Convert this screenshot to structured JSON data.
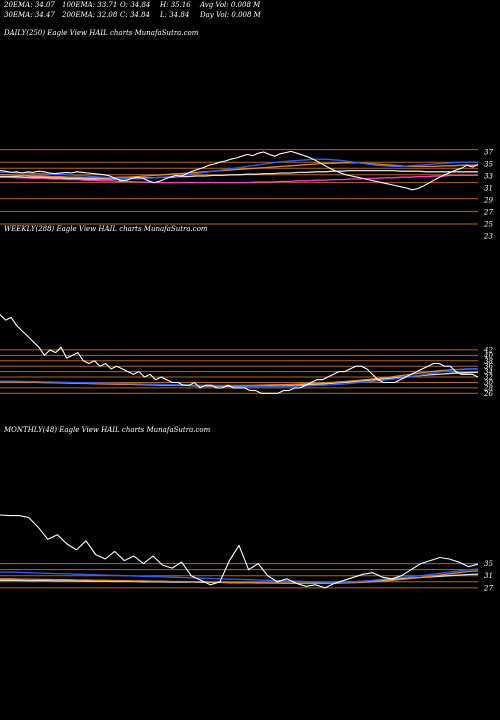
{
  "header": {
    "row1": [
      "20EMA: 34.07",
      "100EMA: 33.71",
      "O: 34.84",
      "H: 35.16",
      "Avg Vol: 0.008 M"
    ],
    "row2": [
      "30EMA: 34.47",
      "200EMA: 32.08",
      "C: 34.84",
      "L: 34.84",
      "Day Vol: 0.008 M"
    ]
  },
  "colors": {
    "background": "#000000",
    "price": "#ffffff",
    "level_lines": "#b5651d",
    "ema_blue": "#2f5fff",
    "ema_magenta": "#ff3cc8",
    "ema_orange": "#e08a30",
    "ema_white": "#dddddd"
  },
  "chart_data": [
    {
      "type": "line",
      "title": "DAILY(250) Eagle  View  HAIL  charts MunafaSutra.com",
      "y_ticks": [
        "37",
        "35",
        "33",
        "31",
        "29",
        "27",
        "25",
        "23"
      ],
      "series": [
        {
          "values": [
            33.9,
            33.8,
            33.6,
            33.7,
            33.5,
            33.7,
            33.6,
            33.8,
            33.7,
            33.5,
            33.4,
            33.5,
            33.6,
            33.5,
            33.7,
            33.6,
            33.5,
            33.4,
            33.3,
            33.2,
            33.0,
            32.6,
            32.2,
            32.3,
            32.6,
            32.8,
            32.6,
            32.2,
            31.9,
            32.1,
            32.5,
            32.8,
            33.1,
            33.0,
            33.4,
            33.8,
            34.1,
            34.4,
            34.8,
            35.0,
            35.3,
            35.5,
            35.8,
            36.0,
            36.3,
            36.6,
            36.4,
            36.8,
            37.0,
            36.6,
            36.3,
            36.7,
            36.9,
            37.1,
            36.8,
            36.5,
            36.2,
            35.8,
            35.3,
            34.8,
            34.3,
            33.9,
            33.5,
            33.2,
            33.0,
            32.8,
            32.6,
            32.4,
            32.2,
            32.0,
            31.8,
            31.6,
            31.4,
            31.2,
            31.0,
            30.7,
            30.9,
            31.3,
            31.8,
            32.3,
            32.8,
            33.2,
            33.6,
            34.0,
            34.3,
            34.8,
            34.5,
            34.9
          ]
        },
        {
          "values": [
            33.6,
            33.6,
            33.5,
            33.5,
            33.4,
            33.4,
            33.3,
            33.3,
            33.2,
            33.1,
            33.0,
            32.9,
            32.8,
            32.7,
            32.6,
            32.6,
            32.5,
            32.6,
            32.7,
            32.8,
            32.9,
            33.0,
            33.2,
            33.4,
            33.6,
            33.8,
            34.0,
            34.2,
            34.4,
            34.6,
            34.8,
            35.0,
            35.2,
            35.4,
            35.5,
            35.6,
            35.7,
            35.8,
            35.8,
            35.7,
            35.6,
            35.4,
            35.2,
            35.0,
            34.8,
            34.7,
            34.6,
            34.6,
            34.7,
            34.8,
            34.9,
            35.0,
            35.1,
            35.2,
            35.3,
            35.3,
            35.3
          ]
        },
        {
          "values": [
            33.2,
            33.2,
            33.1,
            33.1,
            33.0,
            33.0,
            32.9,
            32.9,
            32.8,
            32.8,
            32.7,
            32.7,
            32.7,
            32.7,
            32.8,
            32.8,
            32.9,
            33.0,
            33.1,
            33.2,
            33.3,
            33.4,
            33.5,
            33.6,
            33.7,
            33.8,
            33.9,
            34.0,
            34.1,
            34.2,
            34.3,
            34.4,
            34.5,
            34.6,
            34.7,
            34.8,
            34.9,
            35.0,
            35.1,
            35.1,
            35.2,
            35.2,
            35.2,
            35.1,
            35.0,
            34.9,
            34.8,
            34.7,
            34.6,
            34.6,
            34.6,
            34.6,
            34.7,
            34.7,
            34.8,
            34.8,
            34.8
          ]
        },
        {
          "values": [
            32.9,
            32.9,
            32.9,
            32.8,
            32.8,
            32.8,
            32.7,
            32.7,
            32.6,
            32.6,
            32.5,
            32.5,
            32.5,
            32.5,
            32.5,
            32.6,
            32.6,
            32.7,
            32.7,
            32.8,
            32.8,
            32.9,
            32.9,
            33.0,
            33.0,
            33.1,
            33.1,
            33.2,
            33.2,
            33.3,
            33.3,
            33.4,
            33.4,
            33.5,
            33.5,
            33.6,
            33.6,
            33.7,
            33.7,
            33.8,
            33.8,
            33.9,
            33.9,
            33.9,
            33.9,
            33.9,
            33.9,
            33.8,
            33.8,
            33.8,
            33.7,
            33.7,
            33.7,
            33.7,
            33.7,
            33.7,
            33.7
          ]
        },
        {
          "values": [
            32.8,
            32.8,
            32.7,
            32.7,
            32.6,
            32.6,
            32.5,
            32.5,
            32.4,
            32.4,
            32.3,
            32.3,
            32.2,
            32.2,
            32.1,
            32.1,
            32.0,
            32.0,
            31.9,
            31.9,
            31.9,
            31.9,
            31.9,
            31.9,
            31.9,
            31.9,
            31.9,
            31.9,
            31.9,
            31.9,
            32.0,
            32.0,
            32.0,
            32.1,
            32.1,
            32.2,
            32.2,
            32.3,
            32.3,
            32.4,
            32.4,
            32.5,
            32.5,
            32.6,
            32.6,
            32.7,
            32.7,
            32.8,
            32.8,
            32.9,
            32.9,
            33.0,
            33.0,
            33.1,
            33.1,
            33.1,
            33.1
          ]
        }
      ],
      "level_lines": [
        37.4,
        35.3,
        34.3,
        33.2,
        31.9,
        29.2,
        27.1,
        25.0
      ]
    },
    {
      "type": "line",
      "title": "WEEKLY(288) Eagle  View  HAIL  charts MunafaSutra.com",
      "y_ticks": [
        "42",
        "40",
        "38",
        "36",
        "34",
        "32",
        "30",
        "28",
        "26"
      ],
      "series": [
        {
          "values": [
            55,
            53,
            54,
            51,
            49,
            47,
            45,
            43,
            40,
            42,
            41,
            43,
            39,
            40,
            41,
            38,
            37,
            38,
            36,
            37,
            35,
            36,
            35,
            34,
            33,
            34,
            32,
            33,
            31,
            32,
            31,
            30,
            30,
            29,
            29,
            30,
            28,
            29,
            29,
            28,
            28,
            29,
            28,
            28,
            28,
            27,
            27,
            26,
            26,
            26,
            26,
            27,
            27,
            28,
            28,
            29,
            30,
            31,
            31,
            32,
            33,
            34,
            34,
            35,
            36,
            36,
            35,
            33,
            31,
            30,
            30,
            30,
            31,
            32,
            33,
            34,
            35,
            36,
            37,
            37,
            36,
            36,
            34,
            33,
            33,
            33,
            32
          ]
        },
        {
          "values": [
            30.5,
            30.5,
            30.4,
            30.3,
            30.2,
            30.1,
            30.0,
            29.9,
            29.8,
            29.7,
            29.6,
            29.5,
            29.4,
            29.3,
            29.2,
            29.1,
            29.0,
            28.9,
            28.8,
            28.7,
            28.6,
            28.5,
            28.5,
            28.5,
            28.6,
            28.7,
            28.9,
            29.1,
            29.4,
            29.8,
            30.2,
            30.7,
            31.2,
            31.8,
            32.5,
            33.2,
            34.0,
            34.6,
            35.0,
            35.1
          ]
        },
        {
          "values": [
            30.2,
            30.2,
            30.1,
            30.0,
            29.9,
            29.8,
            29.7,
            29.6,
            29.5,
            29.4,
            29.3,
            29.2,
            29.1,
            29.0,
            28.9,
            28.9,
            28.9,
            28.9,
            28.9,
            28.9,
            28.9,
            29.0,
            29.1,
            29.2,
            29.3,
            29.5,
            29.7,
            30.0,
            30.3,
            30.7,
            31.1,
            31.6,
            32.1,
            32.7,
            33.3,
            33.9,
            34.4,
            34.7,
            34.9,
            35.0
          ]
        },
        {
          "values": [
            30.3,
            30.3,
            30.2,
            30.1,
            30.0,
            29.9,
            29.8,
            29.7,
            29.6,
            29.5,
            29.4,
            29.3,
            29.2,
            29.1,
            29.0,
            28.9,
            28.8,
            28.7,
            28.6,
            28.5,
            28.5,
            28.5,
            28.6,
            28.7,
            28.9,
            29.1,
            29.4,
            29.7,
            30.0,
            30.4,
            30.8,
            31.2,
            31.6,
            32.0,
            32.4,
            32.8,
            33.1,
            33.4,
            33.6,
            33.7
          ]
        }
      ],
      "level_lines": [
        42.0,
        40.0,
        38.0,
        36.0,
        34.0,
        32.0,
        30.0,
        28.0,
        26.0
      ]
    },
    {
      "type": "line",
      "title": "MONTHLY(48) Eagle  View  HAIL  charts MunafaSutra.com",
      "y_ticks": [
        "35",
        "31",
        "27"
      ],
      "series": [
        {
          "values": [
            51.0,
            50.8,
            50.8,
            50.2,
            47.0,
            43.0,
            44.5,
            41.5,
            39.5,
            42.5,
            38.0,
            36.5,
            39.0,
            36.0,
            37.5,
            35.0,
            37.5,
            34.5,
            33.5,
            35.5,
            31.0,
            29.5,
            28.0,
            29.0,
            36.0,
            41.0,
            33.0,
            35.0,
            31.0,
            29.0,
            30.0,
            28.5,
            27.5,
            28.0,
            27.0,
            28.5,
            29.5,
            30.5,
            31.5,
            32.0,
            30.5,
            30.0,
            31.0,
            33.0,
            35.0,
            36.0,
            37.0,
            36.5,
            35.5,
            34.0,
            34.8
          ]
        },
        {
          "values": [
            32.2,
            32.2,
            32.1,
            32.0,
            31.9,
            31.8,
            31.7,
            31.6,
            31.5,
            31.4,
            31.3,
            31.2,
            31.1,
            31.0,
            30.9,
            30.8,
            30.7,
            30.6,
            30.5,
            30.4,
            30.3,
            30.2,
            30.1,
            30.0,
            29.9,
            29.8,
            29.7,
            29.6,
            29.5,
            29.4,
            29.3,
            29.2,
            29.1,
            29.0,
            28.9,
            28.8,
            28.9,
            29.0,
            29.2,
            29.5,
            29.8,
            30.1,
            30.4,
            30.7,
            31.0,
            31.4,
            31.8,
            32.2,
            32.6,
            33.0,
            33.2
          ]
        },
        {
          "values": [
            30.0,
            30.0,
            29.9,
            29.9,
            29.8,
            29.8,
            29.7,
            29.7,
            29.6,
            29.6,
            29.5,
            29.5,
            29.4,
            29.4,
            29.3,
            29.3,
            29.2,
            29.2,
            29.1,
            29.1,
            29.0,
            29.0,
            28.9,
            28.9,
            28.8,
            28.8,
            28.7,
            28.7,
            28.6,
            28.6,
            28.5,
            28.5,
            28.5,
            28.5,
            28.5,
            28.5,
            28.6,
            28.7,
            28.8,
            29.0,
            29.2,
            29.5,
            29.8,
            30.1,
            30.4,
            30.8,
            31.2,
            31.6,
            32.0,
            32.4,
            32.6
          ]
        },
        {
          "values": [
            29.5,
            29.5,
            29.5,
            29.4,
            29.4,
            29.4,
            29.3,
            29.3,
            29.3,
            29.2,
            29.2,
            29.2,
            29.1,
            29.1,
            29.1,
            29.0,
            29.0,
            29.0,
            28.9,
            28.9,
            28.9,
            28.8,
            28.8,
            28.8,
            28.7,
            28.7,
            28.7,
            28.6,
            28.6,
            28.6,
            28.5,
            28.5,
            28.5,
            28.6,
            28.7,
            28.8,
            28.9,
            29.0,
            29.2,
            29.4,
            29.6,
            29.8,
            30.0,
            30.2,
            30.4,
            30.6,
            30.8,
            31.0,
            31.2,
            31.4,
            31.5
          ]
        }
      ],
      "level_lines": [
        35.0,
        33.0,
        31.0,
        29.0,
        27.0
      ]
    }
  ]
}
